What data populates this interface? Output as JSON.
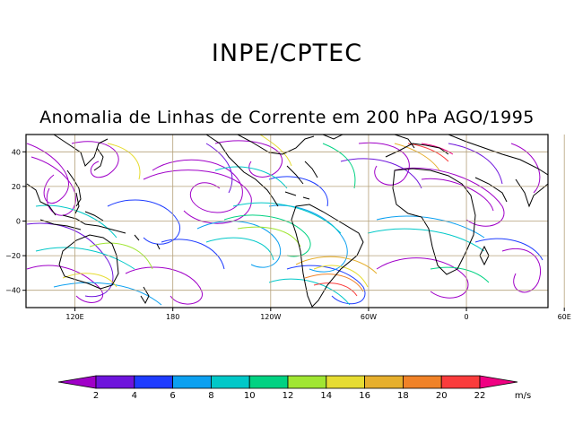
{
  "header": {
    "institution": "INPE/CPTEC",
    "title": "Anomalia de Linhas de Corrente em 200 hPa AGO/1995"
  },
  "map": {
    "lon_range": [
      90,
      410
    ],
    "lat_range": [
      -50,
      50
    ],
    "lat_ticks": [
      {
        "value": 40,
        "label": "40"
      },
      {
        "value": 20,
        "label": "20"
      },
      {
        "value": 0,
        "label": "0"
      },
      {
        "value": -20,
        "label": "−20"
      },
      {
        "value": -40,
        "label": "−40"
      }
    ],
    "lon_ticks": [
      {
        "value": 120,
        "label": "120E"
      },
      {
        "value": 180,
        "label": "180"
      },
      {
        "value": 240,
        "label": "120W"
      },
      {
        "value": 300,
        "label": "60W"
      },
      {
        "value": 360,
        "label": "0"
      },
      {
        "value": 420,
        "label": "60E"
      }
    ]
  },
  "colorbar": {
    "ticks": [
      "2",
      "4",
      "6",
      "8",
      "10",
      "12",
      "14",
      "16",
      "18",
      "20",
      "22"
    ],
    "units": "m/s",
    "colors": [
      "#a000c8",
      "#6e14dc",
      "#1e3cff",
      "#0ca0f0",
      "#00c8c8",
      "#00d282",
      "#a0e632",
      "#e6dc32",
      "#e6af2d",
      "#f08228",
      "#fa3c3c",
      "#f00082"
    ]
  }
}
